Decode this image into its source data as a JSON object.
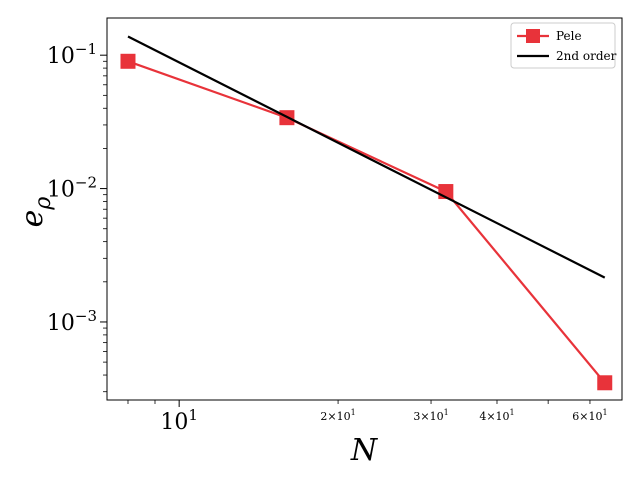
{
  "chart_data": {
    "type": "line",
    "xlabel": "N",
    "ylabel": "e",
    "ylabel_subscript": "ρ",
    "xscale": "log",
    "yscale": "log",
    "xlim": [
      7.3,
      69
    ],
    "ylim": [
      0.00026,
      0.19
    ],
    "grid": false,
    "legend_position": "top-right",
    "x_major_ticks": [
      {
        "value": 10,
        "base": "10",
        "exp": "1"
      }
    ],
    "x_minor_tick_labels": [
      {
        "value": 20,
        "coef": "2",
        "base": "10",
        "exp": "1"
      },
      {
        "value": 30,
        "coef": "3",
        "base": "10",
        "exp": "1"
      },
      {
        "value": 40,
        "coef": "4",
        "base": "10",
        "exp": "1"
      },
      {
        "value": 60,
        "coef": "6",
        "base": "10",
        "exp": "1"
      }
    ],
    "y_major_ticks": [
      {
        "value": 0.1,
        "base": "10",
        "exp": "−1"
      },
      {
        "value": 0.01,
        "base": "10",
        "exp": "−2"
      },
      {
        "value": 0.001,
        "base": "10",
        "exp": "−3"
      }
    ],
    "series": [
      {
        "name": "Pele",
        "color": "#e8333a",
        "marker": "square",
        "x": [
          8,
          16,
          32,
          64
        ],
        "y": [
          0.09,
          0.034,
          0.0095,
          0.00035
        ]
      },
      {
        "name": "2nd order",
        "color": "#000000",
        "marker": "none",
        "x": [
          8,
          64
        ],
        "y": [
          0.138,
          0.00215
        ]
      }
    ]
  }
}
